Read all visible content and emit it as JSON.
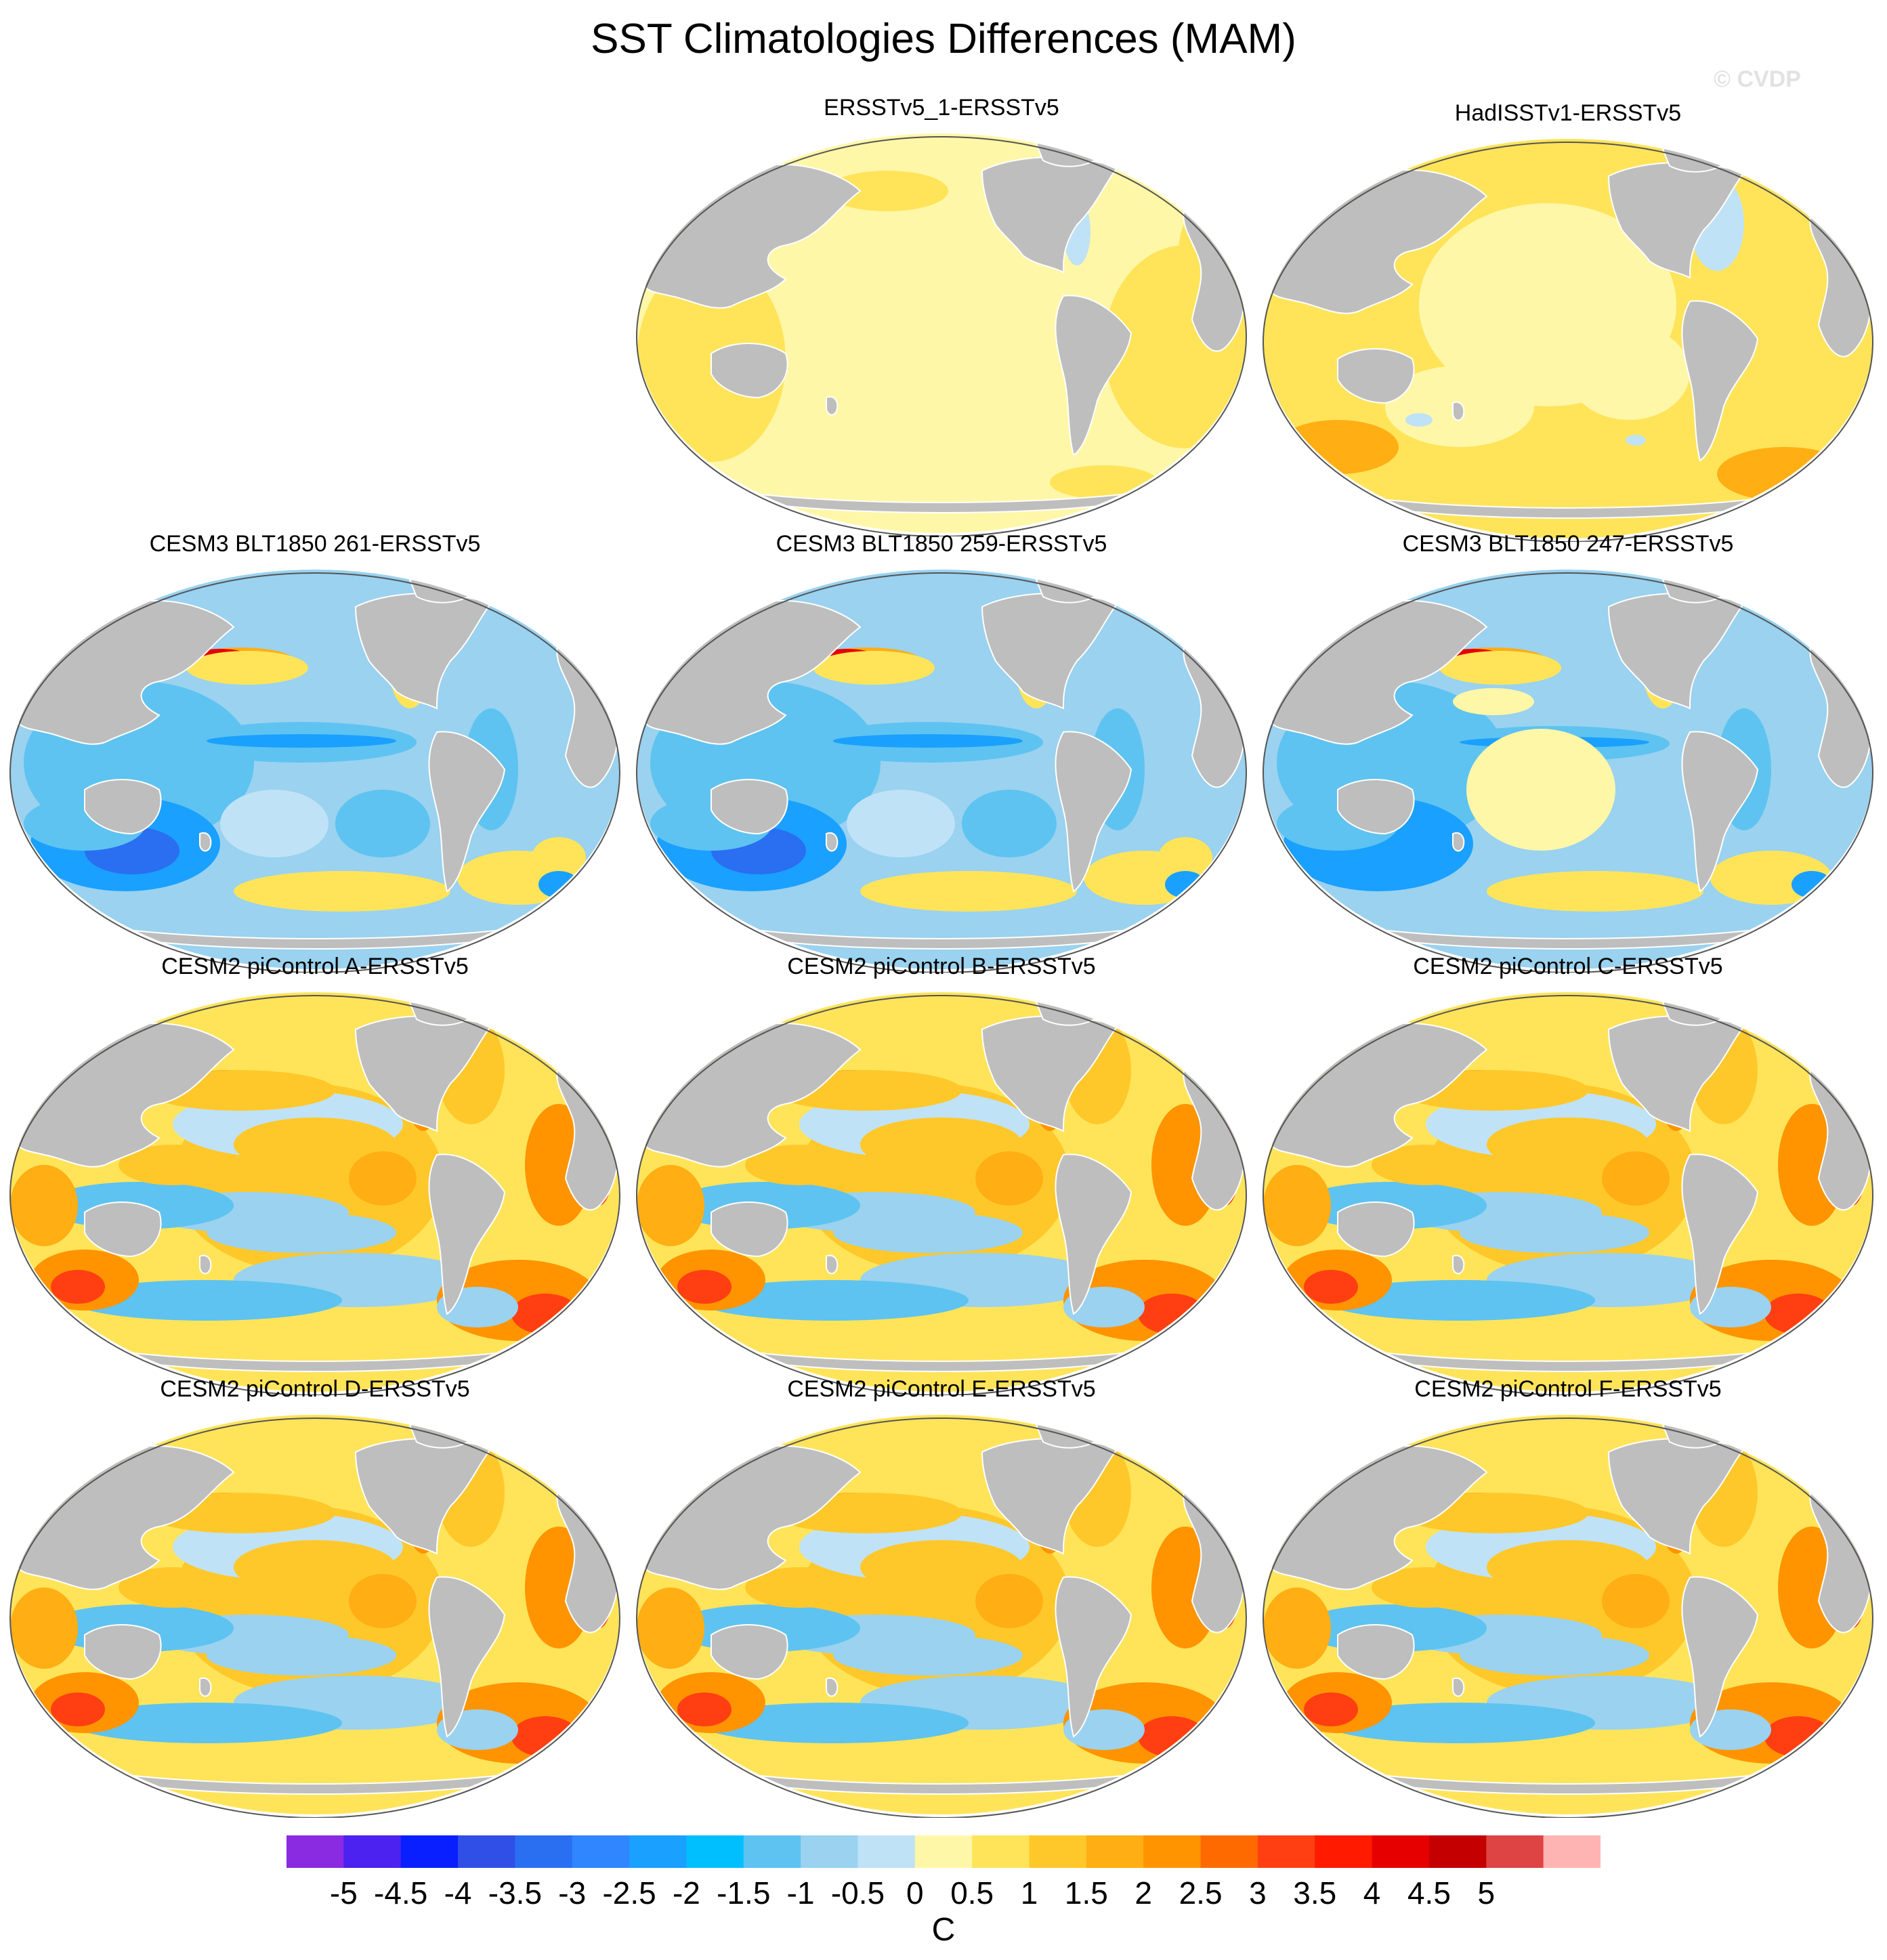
{
  "title": "SST Climatologies Differences (MAM)",
  "watermark": "© CVDP",
  "units": "C",
  "colors": {
    "land": "#bebebe",
    "ocean_outline": "#555555"
  },
  "panels": [
    {
      "label": "ERSSTv5_1-ERSSTv5",
      "pattern": "obs_small"
    },
    {
      "label": "HadISSTv1-ERSSTv5",
      "pattern": "obs_warm"
    },
    {
      "label": "CESM3 BLT1850 261-ERSSTv5",
      "pattern": "cold"
    },
    {
      "label": "CESM3 BLT1850 259-ERSSTv5",
      "pattern": "cold"
    },
    {
      "label": "CESM3 BLT1850 247-ERSSTv5",
      "pattern": "cold_mild"
    },
    {
      "label": "CESM2 piControl A-ERSSTv5",
      "pattern": "warm"
    },
    {
      "label": "CESM2 piControl B-ERSSTv5",
      "pattern": "warm"
    },
    {
      "label": "CESM2 piControl C-ERSSTv5",
      "pattern": "warm"
    },
    {
      "label": "CESM2 piControl D-ERSSTv5",
      "pattern": "warm"
    },
    {
      "label": "CESM2 piControl E-ERSSTv5",
      "pattern": "warm"
    },
    {
      "label": "CESM2 piControl F-ERSSTv5",
      "pattern": "warm"
    }
  ],
  "colorbar": {
    "colors": [
      "#8a2be2",
      "#4b22ef",
      "#0a1fff",
      "#2f4fe6",
      "#2a6ef2",
      "#2f86ff",
      "#1aa0ff",
      "#00bfff",
      "#5ec3f0",
      "#9ad2f0",
      "#c0e2f6",
      "#fff7a8",
      "#ffe45a",
      "#ffc82a",
      "#ffae14",
      "#ff9400",
      "#ff6a00",
      "#ff3f12",
      "#ff1a00",
      "#e60000",
      "#c40000",
      "#de4444",
      "#ffb4b4"
    ],
    "labels": [
      "-5",
      "-4.5",
      "-4",
      "-3.5",
      "-3",
      "-2.5",
      "-2",
      "-1.5",
      "-1",
      "-0.5",
      "0",
      "0.5",
      "1",
      "1.5",
      "2",
      "2.5",
      "3",
      "3.5",
      "4",
      "4.5",
      "5"
    ]
  }
}
